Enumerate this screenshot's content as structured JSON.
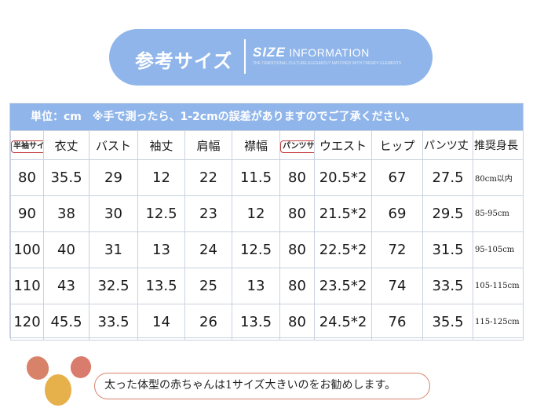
{
  "header": {
    "title_jp": "参考サイズ",
    "title_en_bold": "SIZE",
    "title_en_rest": "INFORMATION",
    "subtitle_fine": "THE TRADITIONAL CULTURE ELEGANTLY MATCHED WITH TRENDY ELEMENTS"
  },
  "notice": "単位：cm　※手で測ったら、1-2cmの誤差がありますのでご了承ください。",
  "table": {
    "headers": [
      "半袖サイズ",
      "衣丈",
      "バスト",
      "袖丈",
      "肩幅",
      "襟幅",
      "パンツサイズ",
      "ウエスト",
      "ヒップ",
      "パンツ丈",
      "推奨身長"
    ],
    "rows": [
      [
        "80",
        "35.5",
        "29",
        "12",
        "22",
        "11.5",
        "80",
        "20.5*2",
        "67",
        "27.5",
        "80cm以内"
      ],
      [
        "90",
        "38",
        "30",
        "12.5",
        "23",
        "12",
        "80",
        "21.5*2",
        "69",
        "29.5",
        "85-95cm"
      ],
      [
        "100",
        "40",
        "31",
        "13",
        "24",
        "12.5",
        "80",
        "22.5*2",
        "72",
        "31.5",
        "95-105cm"
      ],
      [
        "110",
        "43",
        "32.5",
        "13.5",
        "25",
        "13",
        "80",
        "23.5*2",
        "74",
        "33.5",
        "105-115cm"
      ],
      [
        "120",
        "45.5",
        "33.5",
        "14",
        "26",
        "13.5",
        "80",
        "24.5*2",
        "76",
        "35.5",
        "115-125cm"
      ]
    ]
  },
  "footer_note": "太った体型の赤ちゃんは1サイズ大きいのをお勧めします。",
  "colors": {
    "accent": "#8fb5ea",
    "border": "#c9d2de",
    "badge": "#c23b3b"
  }
}
